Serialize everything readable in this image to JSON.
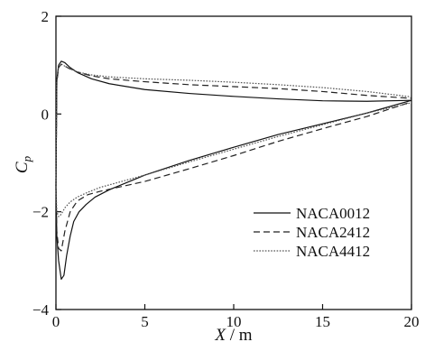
{
  "chart_data": {
    "type": "line",
    "xlim": [
      0,
      20
    ],
    "ylim": [
      -4,
      2
    ],
    "x_ticks": [
      "0",
      "5",
      "10",
      "15",
      "20"
    ],
    "y_ticks": [
      "2",
      "0",
      "-2",
      "-4"
    ],
    "xlabel": "X / m",
    "ylabel": "C_p",
    "grid": false,
    "legend_position": "bottom-right",
    "series": [
      {
        "name": "NACA0012",
        "color": "#111111",
        "dash": "solid",
        "upper": {
          "x": [
            0,
            0.05,
            0.15,
            0.3,
            0.5,
            0.8,
            1.2,
            2,
            3,
            5,
            7.5,
            10,
            12.5,
            15,
            17.5,
            20
          ],
          "y": [
            -1.5,
            0.7,
            1.0,
            1.08,
            1.05,
            0.95,
            0.85,
            0.72,
            0.62,
            0.5,
            0.42,
            0.36,
            0.31,
            0.27,
            0.26,
            0.28
          ]
        },
        "lower": {
          "x": [
            0,
            0.05,
            0.15,
            0.3,
            0.45,
            0.6,
            0.8,
            1.0,
            1.3,
            1.7,
            2.2,
            3,
            4,
            5,
            7.5,
            10,
            12.5,
            15,
            17.5,
            20
          ],
          "y": [
            -1.5,
            -2.5,
            -3.0,
            -3.38,
            -3.3,
            -2.9,
            -2.5,
            -2.2,
            -2.0,
            -1.85,
            -1.7,
            -1.55,
            -1.4,
            -1.25,
            -0.95,
            -0.68,
            -0.42,
            -0.2,
            0.02,
            0.28
          ]
        }
      },
      {
        "name": "NACA2412",
        "color": "#222222",
        "dash": "dashed",
        "upper": {
          "x": [
            0,
            0.05,
            0.15,
            0.3,
            0.5,
            0.8,
            1.2,
            2,
            3,
            5,
            7.5,
            10,
            12.5,
            15,
            17.5,
            20
          ],
          "y": [
            -1.5,
            0.65,
            0.95,
            1.02,
            0.98,
            0.92,
            0.86,
            0.78,
            0.72,
            0.66,
            0.6,
            0.56,
            0.52,
            0.46,
            0.38,
            0.32
          ]
        },
        "lower": {
          "x": [
            0,
            0.05,
            0.15,
            0.3,
            0.5,
            0.8,
            1.2,
            1.8,
            2.5,
            3.5,
            5,
            7.5,
            10,
            12.5,
            15,
            17.5,
            20
          ],
          "y": [
            -1.5,
            -2.4,
            -2.75,
            -2.8,
            -2.4,
            -2.0,
            -1.78,
            -1.65,
            -1.58,
            -1.5,
            -1.38,
            -1.12,
            -0.85,
            -0.56,
            -0.3,
            -0.05,
            0.25
          ]
        }
      },
      {
        "name": "NACA4412",
        "color": "#555555",
        "dash": "dotted",
        "upper": {
          "x": [
            0,
            0.05,
            0.15,
            0.3,
            0.5,
            0.8,
            1.2,
            2,
            3,
            5,
            7.5,
            10,
            12.5,
            15,
            17.5,
            20
          ],
          "y": [
            -1.5,
            0.65,
            0.95,
            1.02,
            0.98,
            0.92,
            0.86,
            0.8,
            0.76,
            0.72,
            0.69,
            0.65,
            0.6,
            0.54,
            0.46,
            0.35
          ]
        },
        "lower": {
          "x": [
            0,
            0.05,
            0.15,
            0.3,
            0.5,
            0.8,
            1.2,
            1.8,
            2.5,
            3.5,
            5,
            7.5,
            10,
            12.5,
            15,
            17.5,
            20
          ],
          "y": [
            -1.5,
            -2.0,
            -2.1,
            -2.05,
            -1.92,
            -1.8,
            -1.7,
            -1.6,
            -1.5,
            -1.4,
            -1.25,
            -0.98,
            -0.72,
            -0.46,
            -0.22,
            0.02,
            0.23
          ]
        }
      }
    ]
  }
}
